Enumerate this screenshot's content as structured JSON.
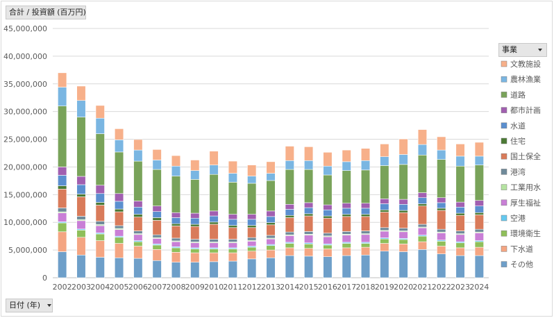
{
  "value_field": {
    "label": "合計 / 投資額 (百万円)"
  },
  "axis_field": {
    "label": "日付 (年)"
  },
  "legend_field": {
    "label": "事業"
  },
  "chart_data": {
    "type": "bar",
    "stacked": true,
    "categories": [
      "2002",
      "2003",
      "2004",
      "2005",
      "2006",
      "2007",
      "2008",
      "2009",
      "2010",
      "2011",
      "2012",
      "2013",
      "2014",
      "2015",
      "2016",
      "2017",
      "2018",
      "2019",
      "2020",
      "2021",
      "2022",
      "2023",
      "2024"
    ],
    "ylim": [
      0,
      45000000
    ],
    "yticks": [
      "0",
      "5,000,000",
      "10,000,000",
      "15,000,000",
      "20,000,000",
      "25,000,000",
      "30,000,000",
      "35,000,000",
      "40,000,000",
      "45,000,000"
    ],
    "ytick_values": [
      0,
      5000000,
      10000000,
      15000000,
      20000000,
      25000000,
      30000000,
      35000000,
      40000000,
      45000000
    ],
    "grid": true,
    "legend_position": "right",
    "series": [
      {
        "name": "その他",
        "color": "#6e9fc9",
        "values": [
          4700000,
          4100000,
          3700000,
          3600000,
          3500000,
          3100000,
          2800000,
          2800000,
          2900000,
          3000000,
          3400000,
          3600000,
          4000000,
          3900000,
          3800000,
          4000000,
          4100000,
          4800000,
          4700000,
          5100000,
          4300000,
          4000000,
          4000000
        ]
      },
      {
        "name": "下水道",
        "color": "#f4a582",
        "values": [
          3600000,
          3200000,
          3000000,
          2600000,
          2200000,
          2000000,
          1800000,
          1700000,
          1600000,
          1500000,
          1400000,
          1400000,
          1400000,
          1400000,
          1400000,
          1400000,
          1400000,
          1400000,
          1400000,
          1400000,
          1400000,
          1400000,
          1500000
        ]
      },
      {
        "name": "環境衛生",
        "color": "#8fbf5a",
        "values": [
          1600000,
          1300000,
          1200000,
          1100000,
          800000,
          800000,
          800000,
          700000,
          700000,
          700000,
          700000,
          800000,
          800000,
          800000,
          700000,
          800000,
          700000,
          800000,
          800000,
          1000000,
          900000,
          900000,
          1000000
        ]
      },
      {
        "name": "空港",
        "color": "#65c9f0",
        "values": [
          200000,
          200000,
          200000,
          200000,
          200000,
          200000,
          200000,
          200000,
          200000,
          200000,
          200000,
          200000,
          200000,
          200000,
          200000,
          200000,
          200000,
          200000,
          200000,
          200000,
          200000,
          200000,
          200000
        ]
      },
      {
        "name": "厚生福祉",
        "color": "#c97fd6",
        "values": [
          1600000,
          1500000,
          1300000,
          1200000,
          1100000,
          1000000,
          900000,
          900000,
          900000,
          900000,
          900000,
          1000000,
          1200000,
          1400000,
          1300000,
          1300000,
          1400000,
          1200000,
          1200000,
          1300000,
          1300000,
          1300000,
          1400000
        ]
      },
      {
        "name": "工業用水",
        "color": "#b5e3a1",
        "values": [
          200000,
          200000,
          200000,
          200000,
          150000,
          150000,
          150000,
          150000,
          150000,
          150000,
          150000,
          150000,
          150000,
          150000,
          150000,
          150000,
          150000,
          150000,
          150000,
          150000,
          150000,
          150000,
          150000
        ]
      },
      {
        "name": "港湾",
        "color": "#6f8a9a",
        "values": [
          700000,
          600000,
          600000,
          500000,
          500000,
          500000,
          500000,
          500000,
          500000,
          500000,
          500000,
          500000,
          500000,
          500000,
          500000,
          500000,
          500000,
          500000,
          500000,
          500000,
          500000,
          500000,
          500000
        ]
      },
      {
        "name": "国土保全",
        "color": "#d97b5a",
        "values": [
          3400000,
          3500000,
          2900000,
          2500000,
          2500000,
          2600000,
          2200000,
          2300000,
          2700000,
          2100000,
          1800000,
          1900000,
          2600000,
          2800000,
          2700000,
          2700000,
          2600000,
          2800000,
          2800000,
          3300000,
          3400000,
          2800000,
          2600000
        ]
      },
      {
        "name": "住宅",
        "color": "#4c7a35",
        "values": [
          600000,
          500000,
          500000,
          500000,
          500000,
          500000,
          400000,
          400000,
          400000,
          400000,
          400000,
          400000,
          400000,
          400000,
          400000,
          400000,
          400000,
          400000,
          400000,
          400000,
          400000,
          400000,
          400000
        ]
      },
      {
        "name": "水道",
        "color": "#5b8fcf",
        "values": [
          1900000,
          1700000,
          1600000,
          1400000,
          1300000,
          1100000,
          1100000,
          1100000,
          1100000,
          1100000,
          1100000,
          1100000,
          1100000,
          1100000,
          1100000,
          1100000,
          1100000,
          1100000,
          1100000,
          1100000,
          1000000,
          1100000,
          1200000
        ]
      },
      {
        "name": "都市計画",
        "color": "#a15fb0",
        "values": [
          1500000,
          1500000,
          1500000,
          1400000,
          1100000,
          1000000,
          900000,
          900000,
          900000,
          900000,
          900000,
          1000000,
          900000,
          900000,
          900000,
          900000,
          900000,
          900000,
          900000,
          900000,
          900000,
          900000,
          1000000
        ]
      },
      {
        "name": "道路",
        "color": "#79a35a",
        "values": [
          11000000,
          10700000,
          9300000,
          7500000,
          7200000,
          6600000,
          6600000,
          6100000,
          6600000,
          5800000,
          5600000,
          5500000,
          6300000,
          6000000,
          5400000,
          5900000,
          6000000,
          6000000,
          6300000,
          6800000,
          6900000,
          6500000,
          6400000
        ]
      },
      {
        "name": "農林漁業",
        "color": "#7ab6e2",
        "values": [
          3400000,
          3000000,
          2800000,
          2200000,
          2000000,
          1700000,
          1800000,
          1600000,
          1700000,
          1600000,
          1300000,
          1300000,
          1600000,
          1600000,
          1600000,
          1600000,
          1700000,
          1600000,
          1800000,
          1900000,
          1700000,
          1800000,
          1600000
        ]
      },
      {
        "name": "文教施設",
        "color": "#f7b08a",
        "values": [
          2600000,
          2600000,
          2300000,
          2000000,
          1900000,
          1900000,
          1900000,
          1900000,
          2500000,
          2200000,
          2000000,
          2100000,
          2600000,
          2500000,
          2500000,
          2100000,
          2200000,
          2300000,
          2800000,
          2700000,
          2400000,
          2200000,
          2500000
        ]
      }
    ]
  }
}
